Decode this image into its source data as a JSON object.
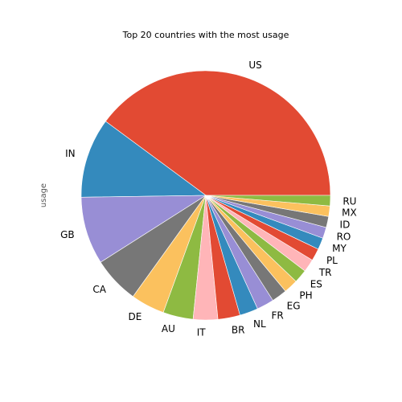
{
  "chart_data": {
    "type": "pie",
    "title": "Top 20 countries with the most usage",
    "ylabel": "usage",
    "start_angle_deg": 0,
    "direction": "counterclockwise",
    "categories": [
      "US",
      "IN",
      "GB",
      "CA",
      "DE",
      "AU",
      "IT",
      "BR",
      "NL",
      "FR",
      "EG",
      "PH",
      "ES",
      "TR",
      "PL",
      "MY",
      "RO",
      "ID",
      "MX",
      "RU"
    ],
    "values": [
      50.0,
      13.0,
      11.0,
      7.6,
      5.5,
      4.9,
      4.0,
      3.6,
      3.0,
      2.8,
      2.5,
      2.3,
      2.2,
      2.1,
      2.0,
      1.9,
      1.8,
      1.8,
      1.7,
      1.7
    ],
    "colors": [
      "#E24A33",
      "#348ABD",
      "#988ED5",
      "#777777",
      "#FBC15E",
      "#8EBA42",
      "#FFB5B8"
    ]
  }
}
